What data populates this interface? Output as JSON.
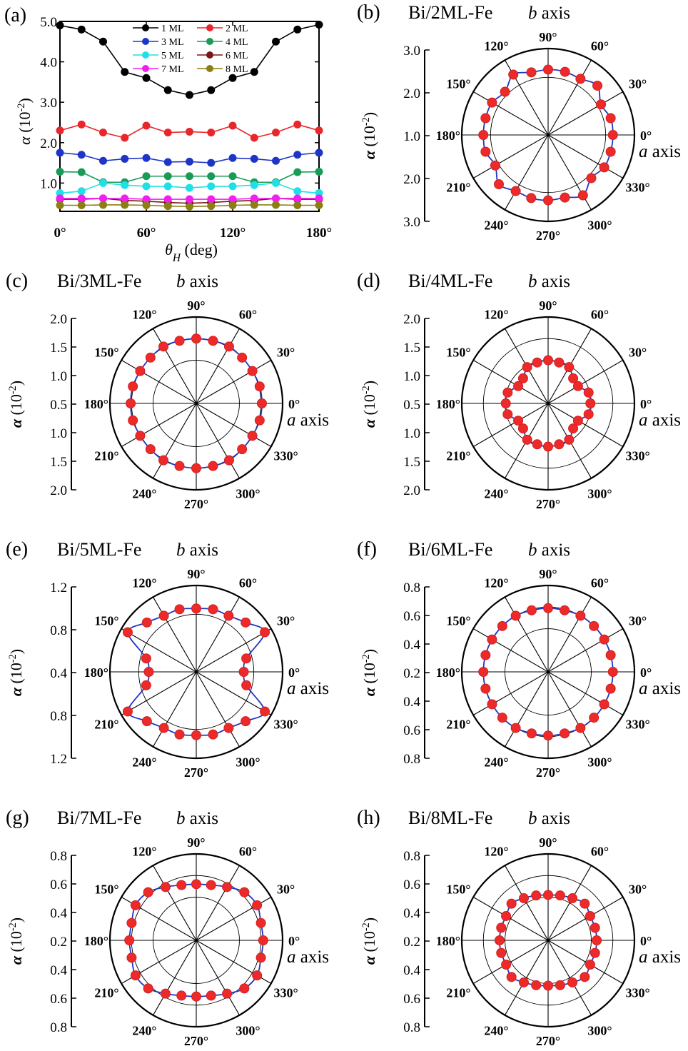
{
  "chart_data": [
    {
      "panel": "(a)",
      "type": "line",
      "xlabel_sym": "θ",
      "xlabel_sub": "H",
      "xlabel_unit": " (deg)",
      "ylabel_sym": "α",
      "ylabel_unit": " (10",
      "ylabel_exp": "-2",
      "ylabel_close": ")",
      "xlim": [
        0,
        180
      ],
      "ylim": [
        0.3,
        5.0
      ],
      "xticks": [
        "0°",
        "60°",
        "120°",
        "180°"
      ],
      "xtick_values": [
        0,
        60,
        120,
        180
      ],
      "yticks": [
        "1.0",
        "2.0",
        "3.0",
        "4.0",
        "5.0"
      ],
      "ytick_values": [
        1.0,
        2.0,
        3.0,
        4.0,
        5.0
      ],
      "x": [
        0,
        15,
        30,
        45,
        60,
        75,
        90,
        105,
        120,
        135,
        150,
        165,
        180
      ],
      "series": [
        {
          "name": "1 ML",
          "color": "#000000",
          "values": [
            4.9,
            4.8,
            4.5,
            3.75,
            3.6,
            3.3,
            3.18,
            3.3,
            3.6,
            3.75,
            4.5,
            4.8,
            4.92
          ]
        },
        {
          "name": "2 ML",
          "color": "#e8262b",
          "values": [
            2.3,
            2.45,
            2.25,
            2.12,
            2.42,
            2.25,
            2.27,
            2.25,
            2.42,
            2.12,
            2.25,
            2.45,
            2.3
          ]
        },
        {
          "name": "3 ML",
          "color": "#1f35c8",
          "values": [
            1.75,
            1.7,
            1.55,
            1.6,
            1.62,
            1.52,
            1.53,
            1.5,
            1.62,
            1.6,
            1.55,
            1.7,
            1.75
          ]
        },
        {
          "name": "4 ML",
          "color": "#1a9a57",
          "values": [
            1.28,
            1.27,
            1.02,
            1.02,
            1.17,
            1.17,
            1.17,
            1.17,
            1.17,
            1.02,
            1.02,
            1.27,
            1.28
          ]
        },
        {
          "name": "5 ML",
          "color": "#1fe0e6",
          "values": [
            0.75,
            0.8,
            1.0,
            0.95,
            0.92,
            0.92,
            0.88,
            0.92,
            0.92,
            0.95,
            1.0,
            0.8,
            0.75
          ]
        },
        {
          "name": "6 ML",
          "color": "#7a1616",
          "values": [
            0.6,
            0.6,
            0.62,
            0.57,
            0.55,
            0.52,
            0.5,
            0.52,
            0.55,
            0.57,
            0.62,
            0.6,
            0.6
          ]
        },
        {
          "name": "7 ML",
          "color": "#f21ef2",
          "values": [
            0.62,
            0.62,
            0.62,
            0.62,
            0.6,
            0.6,
            0.6,
            0.6,
            0.6,
            0.62,
            0.62,
            0.62,
            0.62
          ]
        },
        {
          "name": "8 ML",
          "color": "#8c7d14",
          "values": [
            0.45,
            0.45,
            0.46,
            0.46,
            0.45,
            0.43,
            0.42,
            0.43,
            0.45,
            0.46,
            0.46,
            0.45,
            0.45
          ]
        }
      ]
    },
    {
      "panel": "(b)",
      "title": "Bi/2ML-Fe",
      "type": "polar",
      "yticks": [
        "3.0",
        "2.0",
        "1.0",
        "2.0",
        "3.0"
      ],
      "angle_step_deg": 15,
      "radii": [
        2.25,
        2.25,
        2.12,
        2.42,
        2.25,
        2.27,
        2.27,
        2.25,
        2.42,
        2.12,
        2.25,
        2.25,
        2.25,
        2.25,
        2.12,
        2.42,
        2.25,
        2.27,
        2.27,
        2.25,
        2.42,
        2.12,
        2.25,
        2.25
      ]
    },
    {
      "panel": "(c)",
      "title": "Bi/3ML-Fe",
      "type": "polar",
      "yticks": [
        "2.0",
        "1.5",
        "1.0",
        "0.5",
        "1.0",
        "1.5",
        "2.0"
      ],
      "angle_step_deg": 15,
      "radii": [
        1.52,
        1.52,
        1.5,
        1.5,
        1.52,
        1.5,
        1.5,
        1.5,
        1.52,
        1.5,
        1.5,
        1.52,
        1.52,
        1.52,
        1.5,
        1.5,
        1.52,
        1.5,
        1.5,
        1.5,
        1.52,
        1.5,
        1.5,
        1.52
      ]
    },
    {
      "panel": "(d)",
      "title": "Bi/4ML-Fe",
      "type": "polar",
      "yticks": [
        "2.0",
        "1.5",
        "1.0",
        "0.5",
        "1.0",
        "1.5",
        "2.0"
      ],
      "angle_step_deg": 15,
      "radii": [
        0.98,
        0.97,
        0.8,
        0.82,
        0.97,
        0.98,
        1.0,
        0.98,
        0.97,
        0.82,
        0.8,
        0.97,
        0.98,
        0.97,
        0.8,
        0.82,
        0.97,
        0.98,
        1.0,
        0.98,
        0.97,
        0.82,
        0.8,
        0.97
      ]
    },
    {
      "panel": "(e)",
      "title": "Bi/5ML-Fe",
      "type": "polar",
      "yticks": [
        "1.2",
        "0.8",
        "0.4",
        "0.8",
        "1.2"
      ],
      "angle_step_deg": 15,
      "radii": [
        0.66,
        0.72,
        1.1,
        0.97,
        0.9,
        0.9,
        0.88,
        0.9,
        0.9,
        0.97,
        1.1,
        0.72,
        0.66,
        0.72,
        1.1,
        0.97,
        0.9,
        0.9,
        0.88,
        0.9,
        0.9,
        0.97,
        1.1,
        0.72
      ]
    },
    {
      "panel": "(f)",
      "title": "Bi/6ML-Fe",
      "type": "polar",
      "yticks": [
        "0.8",
        "0.6",
        "0.4",
        "0.2",
        "0.4",
        "0.6",
        "0.8"
      ],
      "angle_step_deg": 15,
      "radii": [
        0.6,
        0.6,
        0.6,
        0.6,
        0.6,
        0.59,
        0.59,
        0.59,
        0.6,
        0.6,
        0.6,
        0.6,
        0.6,
        0.6,
        0.6,
        0.6,
        0.6,
        0.59,
        0.59,
        0.59,
        0.6,
        0.6,
        0.6,
        0.6
      ]
    },
    {
      "panel": "(g)",
      "title": "Bi/7ML-Fe",
      "type": "polar",
      "yticks": [
        "0.8",
        "0.6",
        "0.4",
        "0.2",
        "0.4",
        "0.6",
        "0.8"
      ],
      "angle_step_deg": 15,
      "radii": [
        0.62,
        0.62,
        0.65,
        0.63,
        0.57,
        0.53,
        0.52,
        0.53,
        0.57,
        0.63,
        0.65,
        0.62,
        0.62,
        0.62,
        0.65,
        0.63,
        0.57,
        0.53,
        0.52,
        0.53,
        0.57,
        0.63,
        0.65,
        0.62
      ]
    },
    {
      "panel": "(h)",
      "title": "Bi/8ML-Fe",
      "type": "polar",
      "yticks": [
        "0.8",
        "0.6",
        "0.4",
        "0.2",
        "0.4",
        "0.6",
        "0.8"
      ],
      "angle_step_deg": 15,
      "radii": [
        0.45,
        0.45,
        0.45,
        0.48,
        0.45,
        0.43,
        0.42,
        0.43,
        0.45,
        0.48,
        0.45,
        0.45,
        0.45,
        0.45,
        0.45,
        0.48,
        0.45,
        0.43,
        0.42,
        0.43,
        0.45,
        0.48,
        0.45,
        0.45
      ]
    }
  ],
  "polar_labels": {
    "b_axis_sym": "b",
    "b_axis_word": " axis",
    "a_axis_sym": "a",
    "a_axis_word": " axis",
    "ylabel_sym": "α",
    "ylabel_unit": " (10",
    "ylabel_exp": "-2",
    "ylabel_close": ")",
    "angle_labels": [
      "0°",
      "30°",
      "60°",
      "90°",
      "120°",
      "150°",
      "180°",
      "210°",
      "240°",
      "270°",
      "300°",
      "330°"
    ]
  }
}
